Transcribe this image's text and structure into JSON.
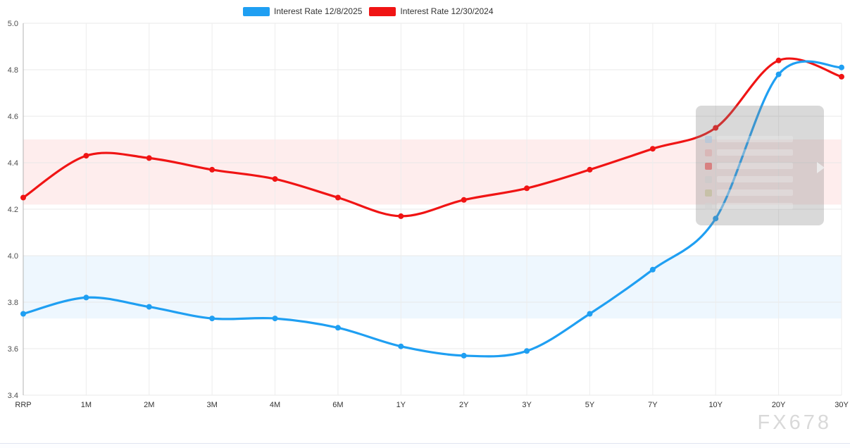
{
  "legend": {
    "items": [
      {
        "label": "Interest Rate 12/8/2025",
        "color": "#1f9ff2"
      },
      {
        "label": "Interest Rate 12/30/2024",
        "color": "#f01414"
      }
    ]
  },
  "watermark": "FX678",
  "chart_data": {
    "type": "line",
    "categories": [
      "RRP",
      "1M",
      "2M",
      "3M",
      "4M",
      "6M",
      "1Y",
      "2Y",
      "3Y",
      "5Y",
      "7Y",
      "10Y",
      "20Y",
      "30Y"
    ],
    "series": [
      {
        "name": "Interest Rate 12/8/2025",
        "color": "#1f9ff2",
        "values": [
          3.75,
          3.82,
          3.78,
          3.73,
          3.73,
          3.69,
          3.61,
          3.57,
          3.59,
          3.75,
          3.94,
          4.16,
          4.78,
          4.81
        ]
      },
      {
        "name": "Interest Rate 12/30/2024",
        "color": "#f01414",
        "values": [
          4.25,
          4.43,
          4.42,
          4.37,
          4.33,
          4.25,
          4.17,
          4.24,
          4.29,
          4.37,
          4.46,
          4.55,
          4.84,
          4.77
        ]
      }
    ],
    "ylim": [
      3.4,
      5.0
    ],
    "yticks": [
      "5.0",
      "4.8",
      "4.6",
      "4.4",
      "4.2",
      "4.0",
      "3.8",
      "3.6",
      "3.4"
    ],
    "grid": true,
    "legend_position": "top",
    "bands": [
      {
        "label": "red-range",
        "from": 4.22,
        "to": 4.5,
        "color": "rgba(240,30,30,0.08)"
      },
      {
        "label": "blue-range",
        "from": 3.73,
        "to": 4.0,
        "color": "rgba(40,150,240,0.08)"
      }
    ]
  },
  "tooltip": {
    "visible": true,
    "swatches": [
      "#aac4dd",
      "#dba8a8",
      "#d94f4f",
      "#c9c9c9",
      "#bdb98f",
      "#d2d2d2"
    ]
  }
}
